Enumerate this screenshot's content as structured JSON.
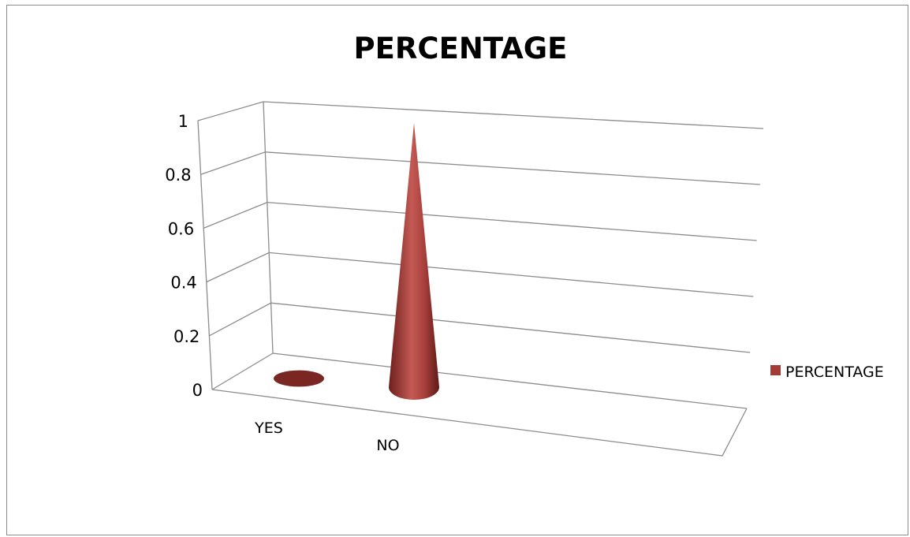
{
  "chart_data": {
    "type": "bar",
    "shape": "cone-3d",
    "title": "PERCENTAGE",
    "categories": [
      "YES",
      "NO"
    ],
    "series": [
      {
        "name": "PERCENTAGE",
        "values": [
          0,
          1
        ],
        "color": "#a33b37"
      }
    ],
    "yticks": [
      "0",
      "0.2",
      "0.4",
      "0.6",
      "0.8",
      "1"
    ],
    "ylim": [
      0,
      1
    ],
    "grid": true,
    "legend": "right"
  }
}
